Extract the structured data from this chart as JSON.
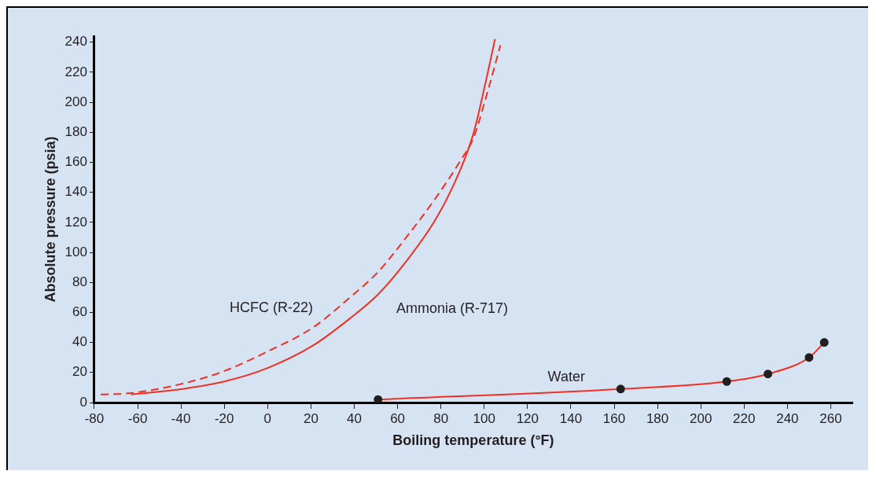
{
  "chart_data": {
    "type": "line",
    "xlabel": "Boiling temperature (°F)",
    "ylabel": "Absolute pressure (psia)",
    "xlim": [
      -80,
      270
    ],
    "xticks": [
      -80,
      -60,
      -40,
      -20,
      0,
      20,
      40,
      60,
      80,
      100,
      120,
      140,
      160,
      180,
      200,
      220,
      240,
      260
    ],
    "ylim": [
      0,
      244
    ],
    "yticks": [
      0,
      20,
      40,
      60,
      80,
      100,
      120,
      140,
      160,
      180,
      200,
      220,
      240
    ],
    "grid": false,
    "series": [
      {
        "name": "HCFC (R-22)",
        "color": "#ee3124",
        "line_style": "dashed",
        "marker": "none",
        "x": [
          -77,
          -63,
          -38,
          -20,
          0,
          21,
          38,
          51,
          64,
          78,
          89,
          95,
          100,
          107.5
        ],
        "values": [
          5.4,
          6.3,
          13,
          21,
          34,
          50,
          70,
          87,
          110,
          137,
          161,
          176,
          199,
          238
        ]
      },
      {
        "name": "Ammonia (R-717)",
        "color": "#ee3124",
        "line_style": "solid",
        "marker": "none",
        "x": [
          -63,
          -38,
          -20,
          0,
          21,
          38,
          51,
          64,
          78,
          89,
          95,
          100,
          105
        ],
        "values": [
          5.4,
          9.3,
          14,
          23,
          38,
          56,
          72,
          94,
          123,
          155,
          179,
          209,
          242
        ]
      },
      {
        "name": "Water",
        "color": "#ee3124",
        "line_style": "solid",
        "marker": "circle",
        "x": [
          51,
          163,
          212,
          231,
          250,
          257
        ],
        "values": [
          2,
          9,
          14,
          19,
          30,
          40
        ]
      }
    ]
  }
}
